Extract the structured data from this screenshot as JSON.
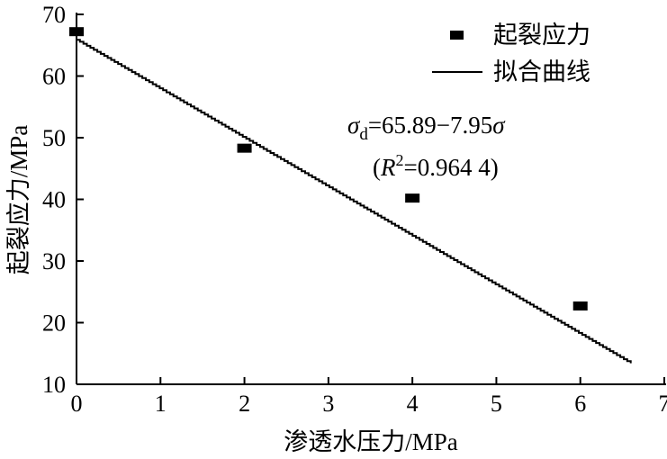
{
  "chart_data": {
    "type": "scatter",
    "title": "",
    "xlabel": "渗透水压力/MPa",
    "ylabel": "起裂应力/MPa",
    "xlim": [
      0,
      7
    ],
    "ylim": [
      10,
      70
    ],
    "x_ticks": [
      "0",
      "1",
      "2",
      "3",
      "4",
      "5",
      "6",
      "7"
    ],
    "y_ticks": [
      "10",
      "20",
      "30",
      "40",
      "50",
      "60",
      "70"
    ],
    "grid": false,
    "legend_position": "top-right",
    "series": [
      {
        "name": "起裂应力",
        "type": "scatter",
        "marker": "square",
        "x": [
          0,
          2,
          4,
          6
        ],
        "y": [
          67.2,
          48.3,
          40.2,
          22.7
        ]
      },
      {
        "name": "拟合曲线",
        "type": "line",
        "intercept": 65.89,
        "slope": -7.95,
        "x_range": [
          0,
          6.6
        ]
      }
    ],
    "annotation": {
      "sym": "σ",
      "sub": "d",
      "eq": "=65.89−7.95",
      "sym2": "σ",
      "open": "(",
      "r": "R",
      "sup": "2",
      "rval": "=0.964 4)"
    },
    "colors": {
      "axis": "#000000",
      "marker": "#000000",
      "line": "#000000"
    }
  }
}
